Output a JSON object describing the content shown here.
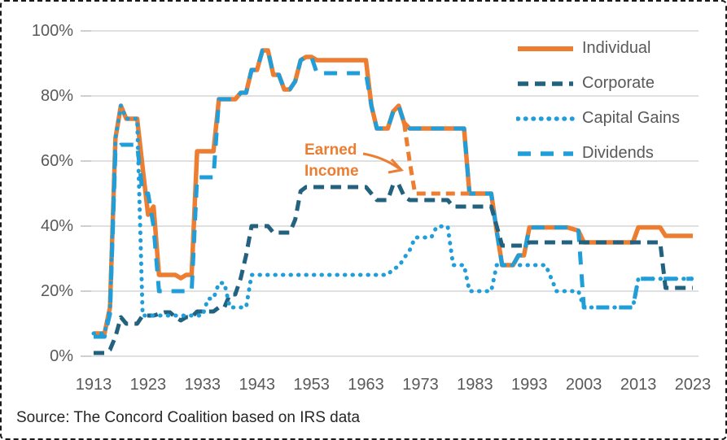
{
  "source_caption": "Source: The Concord Coalition based on IRS data",
  "legend": {
    "items": [
      {
        "label": "Individual",
        "series_key": "individual"
      },
      {
        "label": "Corporate",
        "series_key": "corporate"
      },
      {
        "label": "Capital Gains",
        "series_key": "capital_gains"
      },
      {
        "label": "Dividends",
        "series_key": "dividends"
      }
    ]
  },
  "colors": {
    "orange": "#ED7D31",
    "dark_blue": "#23627F",
    "light_blue": "#1F9ED9",
    "gridline": "#D6D6D6",
    "axis_text": "#595959",
    "source_text": "#262626"
  },
  "chart_data": {
    "type": "line",
    "title": "",
    "xlabel": "",
    "ylabel": "",
    "grid": true,
    "legend_position": "top-right",
    "x_axis": {
      "range": [
        1913,
        2023
      ],
      "ticks": [
        1913,
        1923,
        1933,
        1943,
        1953,
        1963,
        1973,
        1983,
        1993,
        2003,
        2013,
        2023
      ]
    },
    "y_axis": {
      "range": [
        0,
        100
      ],
      "tick_values": [
        0,
        20,
        40,
        60,
        80,
        100
      ],
      "tick_labels": [
        "0%",
        "20%",
        "40%",
        "60%",
        "80%",
        "100%"
      ]
    },
    "annotation": {
      "label": "Earned Income",
      "color": "#ED7D31",
      "points_to": "earned_income 1971 segment at 60%"
    },
    "series": [
      {
        "key": "individual",
        "name": "Individual",
        "color": "#ED7D31",
        "dash": "",
        "cap": "butt",
        "width": 5.5,
        "points": [
          [
            1913,
            7
          ],
          [
            1915,
            7
          ],
          [
            1916,
            15
          ],
          [
            1917,
            67
          ],
          [
            1918,
            77
          ],
          [
            1919,
            73
          ],
          [
            1921,
            73
          ],
          [
            1922,
            58
          ],
          [
            1923,
            43.5
          ],
          [
            1924,
            46
          ],
          [
            1925,
            25
          ],
          [
            1928,
            25
          ],
          [
            1929,
            24
          ],
          [
            1930,
            25
          ],
          [
            1931,
            25
          ],
          [
            1932,
            63
          ],
          [
            1935,
            63
          ],
          [
            1936,
            79
          ],
          [
            1939,
            79
          ],
          [
            1940,
            81
          ],
          [
            1941,
            81
          ],
          [
            1942,
            88
          ],
          [
            1943,
            88
          ],
          [
            1944,
            94
          ],
          [
            1945,
            94
          ],
          [
            1946,
            86.5
          ],
          [
            1947,
            86.5
          ],
          [
            1948,
            82
          ],
          [
            1949,
            82
          ],
          [
            1950,
            84.5
          ],
          [
            1951,
            91
          ],
          [
            1952,
            92
          ],
          [
            1953,
            92
          ],
          [
            1954,
            91
          ],
          [
            1963,
            91
          ],
          [
            1964,
            77
          ],
          [
            1965,
            70
          ],
          [
            1967,
            70
          ],
          [
            1968,
            75.25
          ],
          [
            1969,
            77
          ],
          [
            1970,
            71.75
          ],
          [
            1971,
            70
          ],
          [
            1981,
            70
          ],
          [
            1982,
            50
          ],
          [
            1986,
            50
          ],
          [
            1987,
            38.5
          ],
          [
            1988,
            28
          ],
          [
            1990,
            28
          ],
          [
            1991,
            31
          ],
          [
            1992,
            31
          ],
          [
            1993,
            39.6
          ],
          [
            2000,
            39.6
          ],
          [
            2001,
            39.1
          ],
          [
            2002,
            38.6
          ],
          [
            2003,
            35
          ],
          [
            2012,
            35
          ],
          [
            2013,
            39.6
          ],
          [
            2017,
            39.6
          ],
          [
            2018,
            37
          ],
          [
            2023,
            37
          ]
        ]
      },
      {
        "key": "dividends",
        "name": "Dividends",
        "color": "#1F9ED9",
        "dash": "16 12",
        "cap": "butt",
        "width": 5,
        "points": [
          [
            1913,
            6
          ],
          [
            1915,
            6
          ],
          [
            1916,
            13
          ],
          [
            1917,
            63
          ],
          [
            1918,
            65
          ],
          [
            1921,
            65
          ],
          [
            1922,
            50
          ],
          [
            1923,
            50
          ],
          [
            1924,
            40
          ],
          [
            1925,
            20
          ],
          [
            1931,
            20
          ],
          [
            1932,
            55
          ],
          [
            1935,
            55
          ],
          [
            1936,
            79
          ],
          [
            1939,
            79
          ],
          [
            1940,
            81
          ],
          [
            1941,
            81
          ],
          [
            1942,
            88
          ],
          [
            1943,
            88
          ],
          [
            1944,
            94
          ],
          [
            1945,
            94
          ],
          [
            1946,
            86.5
          ],
          [
            1947,
            86.5
          ],
          [
            1948,
            82
          ],
          [
            1949,
            82
          ],
          [
            1950,
            84.5
          ],
          [
            1951,
            91
          ],
          [
            1952,
            92
          ],
          [
            1953,
            92
          ],
          [
            1954,
            87
          ],
          [
            1963,
            87
          ],
          [
            1964,
            77
          ],
          [
            1965,
            70
          ],
          [
            1967,
            70
          ],
          [
            1968,
            75.25
          ],
          [
            1969,
            77
          ],
          [
            1970,
            71.75
          ],
          [
            1971,
            70
          ],
          [
            1981,
            70
          ],
          [
            1982,
            50
          ],
          [
            1986,
            50
          ],
          [
            1987,
            38.5
          ],
          [
            1988,
            28
          ],
          [
            1990,
            28
          ],
          [
            1991,
            31
          ],
          [
            1992,
            31
          ],
          [
            1993,
            39.6
          ],
          [
            2000,
            39.6
          ],
          [
            2001,
            39.1
          ],
          [
            2002,
            38.6
          ],
          [
            2003,
            15
          ],
          [
            2012,
            15
          ],
          [
            2013,
            23.8
          ],
          [
            2023,
            23.8
          ]
        ]
      },
      {
        "key": "corporate",
        "name": "Corporate",
        "color": "#23627F",
        "dash": "13 8",
        "cap": "butt",
        "width": 5,
        "points": [
          [
            1913,
            1
          ],
          [
            1915,
            1
          ],
          [
            1916,
            2
          ],
          [
            1917,
            6
          ],
          [
            1918,
            12
          ],
          [
            1919,
            10
          ],
          [
            1921,
            10
          ],
          [
            1922,
            12.5
          ],
          [
            1924,
            12.5
          ],
          [
            1925,
            13
          ],
          [
            1926,
            13.5
          ],
          [
            1927,
            13.5
          ],
          [
            1928,
            12
          ],
          [
            1929,
            11
          ],
          [
            1930,
            12
          ],
          [
            1931,
            12
          ],
          [
            1932,
            13.75
          ],
          [
            1935,
            13.75
          ],
          [
            1936,
            15
          ],
          [
            1937,
            15
          ],
          [
            1938,
            19
          ],
          [
            1939,
            19
          ],
          [
            1940,
            24
          ],
          [
            1941,
            31
          ],
          [
            1942,
            40
          ],
          [
            1945,
            40
          ],
          [
            1946,
            38
          ],
          [
            1949,
            38
          ],
          [
            1950,
            42
          ],
          [
            1951,
            50.75
          ],
          [
            1952,
            52
          ],
          [
            1963,
            52
          ],
          [
            1964,
            50
          ],
          [
            1965,
            48
          ],
          [
            1967,
            48
          ],
          [
            1968,
            52.8
          ],
          [
            1969,
            52.8
          ],
          [
            1970,
            49.2
          ],
          [
            1971,
            48
          ],
          [
            1978,
            48
          ],
          [
            1979,
            46
          ],
          [
            1986,
            46
          ],
          [
            1987,
            40
          ],
          [
            1988,
            34
          ],
          [
            1992,
            34
          ],
          [
            1993,
            35
          ],
          [
            2017,
            35
          ],
          [
            2018,
            21
          ],
          [
            2023,
            21
          ]
        ]
      },
      {
        "key": "capital_gains",
        "name": "Capital Gains",
        "color": "#1F9ED9",
        "dash": "0.5 9",
        "cap": "round",
        "width": 5,
        "points": [
          [
            1913,
            7
          ],
          [
            1915,
            7
          ],
          [
            1916,
            15
          ],
          [
            1917,
            67
          ],
          [
            1918,
            77
          ],
          [
            1919,
            73
          ],
          [
            1921,
            73
          ],
          [
            1922,
            12.5
          ],
          [
            1933,
            12.5
          ],
          [
            1934,
            17.7
          ],
          [
            1935,
            17.7
          ],
          [
            1936,
            22.5
          ],
          [
            1937,
            22.5
          ],
          [
            1938,
            15
          ],
          [
            1941,
            15
          ],
          [
            1942,
            25
          ],
          [
            1967,
            25
          ],
          [
            1968,
            26.9
          ],
          [
            1969,
            27.5
          ],
          [
            1970,
            30.2
          ],
          [
            1971,
            32.5
          ],
          [
            1972,
            36.5
          ],
          [
            1975,
            36.5
          ],
          [
            1976,
            39.9
          ],
          [
            1978,
            39.9
          ],
          [
            1979,
            28
          ],
          [
            1981,
            28
          ],
          [
            1982,
            20
          ],
          [
            1986,
            20
          ],
          [
            1987,
            28
          ],
          [
            1996,
            28
          ],
          [
            1998,
            20
          ],
          [
            2002,
            20
          ],
          [
            2003,
            15
          ],
          [
            2012,
            15
          ],
          [
            2013,
            23.8
          ],
          [
            2023,
            23.8
          ]
        ]
      },
      {
        "key": "earned_income",
        "name": "Earned Income",
        "color": "#ED7D31",
        "dash": "11 7",
        "cap": "butt",
        "width": 5,
        "points": [
          [
            1970,
            71.75
          ],
          [
            1971,
            60
          ],
          [
            1972,
            50
          ],
          [
            1981,
            50
          ],
          [
            1982,
            50
          ]
        ]
      }
    ]
  }
}
